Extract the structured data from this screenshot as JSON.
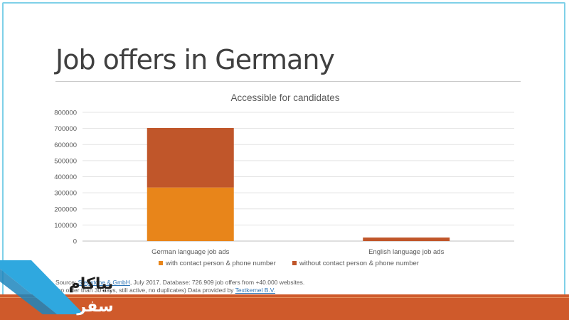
{
  "slide": {
    "title": "Job offers in Germany"
  },
  "chart_data": {
    "type": "bar",
    "stacked": true,
    "title": "Accessible for candidates",
    "xlabel": "",
    "ylabel": "",
    "categories": [
      "German language job ads",
      "English language job ads"
    ],
    "series": [
      {
        "name": "with contact person & phone number",
        "color": "#e8851a",
        "values": [
          333000,
          0
        ]
      },
      {
        "name": "without contact person & phone number",
        "color": "#c0562a",
        "values": [
          370000,
          22000
        ]
      }
    ],
    "ylim": [
      0,
      800000
    ],
    "yticks": [
      0,
      100000,
      200000,
      300000,
      400000,
      500000,
      600000,
      700000,
      800000
    ],
    "ytick_labels": [
      "0",
      "100000",
      "200000",
      "300000",
      "400000",
      "500000",
      "600000",
      "700000",
      "800000"
    ],
    "grid": true,
    "legend_position": "bottom"
  },
  "source": {
    "prefix": "Source: ",
    "company_link": "Stepstone & GmbH",
    "line1_rest": ", July 2017. Database: 726.909 job offers from +40.000 websites.",
    "line2_start": "(no older than 30 days, still active, no duplicates) Data provided by ",
    "provider_link": "Textkernel B.V."
  },
  "watermark": {
    "text_line1": "بياكام",
    "text_line2": "سفر",
    "accent_color": "#2fa8df"
  }
}
